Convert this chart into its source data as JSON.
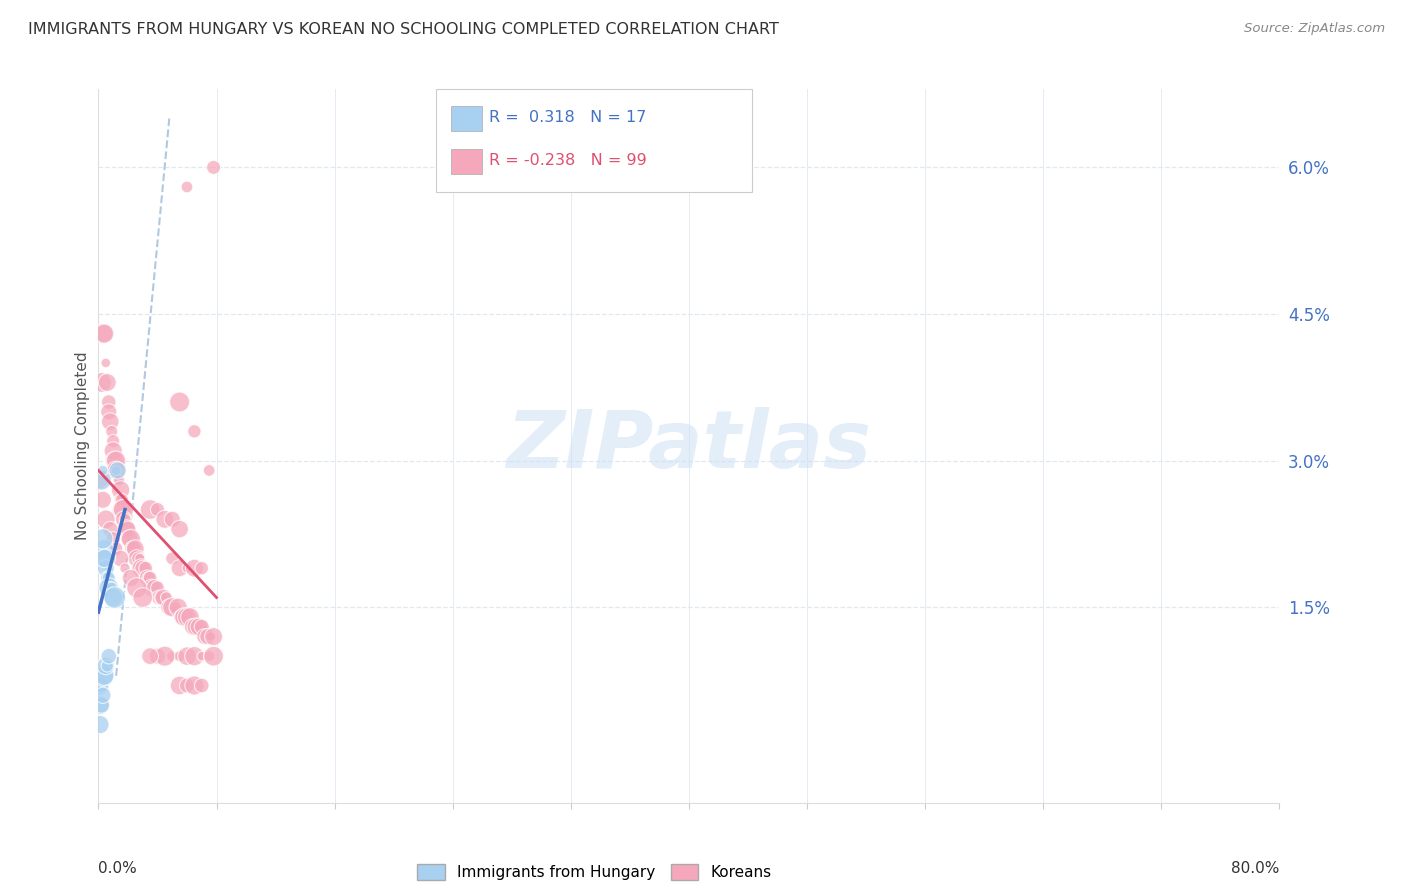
{
  "title": "IMMIGRANTS FROM HUNGARY VS KOREAN NO SCHOOLING COMPLETED CORRELATION CHART",
  "source": "Source: ZipAtlas.com",
  "ylabel": "No Schooling Completed",
  "xmin": 0.0,
  "xmax": 0.8,
  "ymin": -0.005,
  "ymax": 0.068,
  "hungary_color": "#a8d0f0",
  "korean_color": "#f5a8bc",
  "hungary_line_color": "#4472c4",
  "korean_line_color": "#e05070",
  "trendline_dash_color": "#b0c8e0",
  "background_color": "#ffffff",
  "grid_color": "#e0e8f0",
  "ytick_color": "#4472c4",
  "hungary_points": [
    [
      0.002,
      0.028
    ],
    [
      0.003,
      0.029
    ],
    [
      0.004,
      0.021
    ],
    [
      0.005,
      0.02
    ],
    [
      0.005,
      0.019
    ],
    [
      0.006,
      0.018
    ],
    [
      0.007,
      0.018
    ],
    [
      0.007,
      0.017
    ],
    [
      0.008,
      0.017
    ],
    [
      0.009,
      0.017
    ],
    [
      0.01,
      0.016
    ],
    [
      0.011,
      0.016
    ],
    [
      0.012,
      0.029
    ],
    [
      0.013,
      0.029
    ],
    [
      0.003,
      0.022
    ],
    [
      0.004,
      0.02
    ],
    [
      0.001,
      0.007
    ],
    [
      0.002,
      0.007
    ],
    [
      0.003,
      0.008
    ],
    [
      0.004,
      0.008
    ],
    [
      0.005,
      0.009
    ],
    [
      0.006,
      0.009
    ],
    [
      0.007,
      0.01
    ],
    [
      0.001,
      0.005
    ],
    [
      0.002,
      0.005
    ],
    [
      0.003,
      0.006
    ],
    [
      0.001,
      0.003
    ]
  ],
  "korean_points": [
    [
      0.001,
      0.028
    ],
    [
      0.002,
      0.038
    ],
    [
      0.003,
      0.043
    ],
    [
      0.004,
      0.043
    ],
    [
      0.005,
      0.04
    ],
    [
      0.006,
      0.038
    ],
    [
      0.007,
      0.036
    ],
    [
      0.007,
      0.035
    ],
    [
      0.008,
      0.034
    ],
    [
      0.009,
      0.033
    ],
    [
      0.01,
      0.032
    ],
    [
      0.01,
      0.031
    ],
    [
      0.011,
      0.03
    ],
    [
      0.012,
      0.03
    ],
    [
      0.012,
      0.029
    ],
    [
      0.013,
      0.028
    ],
    [
      0.014,
      0.028
    ],
    [
      0.015,
      0.027
    ],
    [
      0.015,
      0.026
    ],
    [
      0.016,
      0.026
    ],
    [
      0.016,
      0.025
    ],
    [
      0.017,
      0.025
    ],
    [
      0.017,
      0.024
    ],
    [
      0.018,
      0.024
    ],
    [
      0.019,
      0.023
    ],
    [
      0.02,
      0.023
    ],
    [
      0.021,
      0.022
    ],
    [
      0.022,
      0.022
    ],
    [
      0.023,
      0.021
    ],
    [
      0.024,
      0.021
    ],
    [
      0.025,
      0.021
    ],
    [
      0.026,
      0.02
    ],
    [
      0.027,
      0.02
    ],
    [
      0.028,
      0.02
    ],
    [
      0.029,
      0.019
    ],
    [
      0.03,
      0.019
    ],
    [
      0.032,
      0.019
    ],
    [
      0.033,
      0.018
    ],
    [
      0.034,
      0.018
    ],
    [
      0.035,
      0.018
    ],
    [
      0.036,
      0.017
    ],
    [
      0.038,
      0.017
    ],
    [
      0.04,
      0.017
    ],
    [
      0.041,
      0.016
    ],
    [
      0.042,
      0.016
    ],
    [
      0.044,
      0.016
    ],
    [
      0.046,
      0.016
    ],
    [
      0.048,
      0.015
    ],
    [
      0.05,
      0.015
    ],
    [
      0.052,
      0.015
    ],
    [
      0.054,
      0.015
    ],
    [
      0.056,
      0.014
    ],
    [
      0.058,
      0.014
    ],
    [
      0.06,
      0.014
    ],
    [
      0.062,
      0.014
    ],
    [
      0.064,
      0.013
    ],
    [
      0.066,
      0.013
    ],
    [
      0.068,
      0.013
    ],
    [
      0.07,
      0.013
    ],
    [
      0.072,
      0.012
    ],
    [
      0.074,
      0.012
    ],
    [
      0.076,
      0.012
    ],
    [
      0.078,
      0.012
    ],
    [
      0.003,
      0.026
    ],
    [
      0.005,
      0.024
    ],
    [
      0.008,
      0.023
    ],
    [
      0.01,
      0.022
    ],
    [
      0.012,
      0.021
    ],
    [
      0.015,
      0.02
    ],
    [
      0.018,
      0.019
    ],
    [
      0.022,
      0.018
    ],
    [
      0.026,
      0.017
    ],
    [
      0.03,
      0.016
    ],
    [
      0.035,
      0.025
    ],
    [
      0.04,
      0.025
    ],
    [
      0.045,
      0.024
    ],
    [
      0.05,
      0.024
    ],
    [
      0.055,
      0.023
    ],
    [
      0.05,
      0.02
    ],
    [
      0.055,
      0.019
    ],
    [
      0.06,
      0.019
    ],
    [
      0.065,
      0.019
    ],
    [
      0.07,
      0.019
    ],
    [
      0.075,
      0.029
    ],
    [
      0.078,
      0.06
    ],
    [
      0.06,
      0.058
    ],
    [
      0.055,
      0.036
    ],
    [
      0.065,
      0.033
    ],
    [
      0.05,
      0.01
    ],
    [
      0.055,
      0.01
    ],
    [
      0.06,
      0.01
    ],
    [
      0.065,
      0.01
    ],
    [
      0.07,
      0.01
    ],
    [
      0.075,
      0.01
    ],
    [
      0.078,
      0.01
    ],
    [
      0.04,
      0.01
    ],
    [
      0.045,
      0.01
    ],
    [
      0.035,
      0.01
    ],
    [
      0.055,
      0.007
    ],
    [
      0.06,
      0.007
    ],
    [
      0.065,
      0.007
    ],
    [
      0.07,
      0.007
    ]
  ],
  "hun_trendline": [
    [
      0.0,
      0.0145
    ],
    [
      0.018,
      0.025
    ]
  ],
  "kor_trendline": [
    [
      0.0,
      0.029
    ],
    [
      0.08,
      0.016
    ]
  ],
  "dash_trendline": [
    [
      0.012,
      0.008
    ],
    [
      0.048,
      0.065
    ]
  ]
}
